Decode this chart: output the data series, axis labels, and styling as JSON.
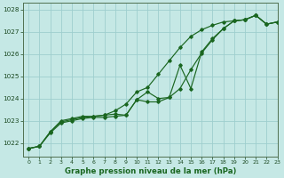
{
  "xlabel": "Graphe pression niveau de la mer (hPa)",
  "xlim": [
    -0.5,
    23
  ],
  "ylim": [
    1021.4,
    1028.3
  ],
  "yticks": [
    1022,
    1023,
    1024,
    1025,
    1026,
    1027,
    1028
  ],
  "xticks": [
    0,
    1,
    2,
    3,
    4,
    5,
    6,
    7,
    8,
    9,
    10,
    11,
    12,
    13,
    14,
    15,
    16,
    17,
    18,
    19,
    20,
    21,
    22,
    23
  ],
  "background_color": "#c5e8e5",
  "grid_color": "#9ecece",
  "line_color": "#1a6620",
  "line1": {
    "x": [
      0,
      1,
      2,
      3,
      4,
      5,
      6,
      7,
      8,
      9,
      10,
      11,
      12,
      13,
      14,
      15,
      16,
      17,
      18,
      19,
      20,
      21,
      22,
      23
    ],
    "y": [
      1021.75,
      1021.85,
      1022.45,
      1022.9,
      1023.0,
      1023.1,
      1023.15,
      1023.15,
      1023.2,
      1023.25,
      1023.95,
      1023.85,
      1023.85,
      1024.05,
      1025.5,
      1024.45,
      1026.1,
      1026.7,
      1027.15,
      1027.5,
      1027.55,
      1027.75,
      1027.35,
      1027.45
    ]
  },
  "line2": {
    "x": [
      0,
      1,
      2,
      3,
      4,
      5,
      6,
      7,
      8,
      9,
      10,
      11,
      12,
      13,
      14,
      15,
      16,
      17,
      18,
      19,
      20,
      21,
      22,
      23
    ],
    "y": [
      1021.75,
      1021.85,
      1022.5,
      1022.95,
      1023.05,
      1023.15,
      1023.2,
      1023.25,
      1023.45,
      1023.75,
      1024.3,
      1024.5,
      1025.1,
      1025.7,
      1026.3,
      1026.8,
      1027.1,
      1027.3,
      1027.45,
      1027.5,
      1027.55,
      1027.75,
      1027.35,
      1027.45
    ]
  },
  "line3": {
    "x": [
      0,
      1,
      2,
      3,
      4,
      5,
      6,
      7,
      8,
      9,
      10,
      11,
      12,
      13,
      14,
      15,
      16,
      17,
      18,
      19,
      20,
      21,
      22,
      23
    ],
    "y": [
      1021.75,
      1021.85,
      1022.5,
      1023.0,
      1023.1,
      1023.2,
      1023.2,
      1023.25,
      1023.3,
      1023.25,
      1023.95,
      1024.3,
      1024.0,
      1024.05,
      1024.45,
      1025.3,
      1026.05,
      1026.65,
      1027.15,
      1027.5,
      1027.55,
      1027.75,
      1027.35,
      1027.45
    ]
  }
}
